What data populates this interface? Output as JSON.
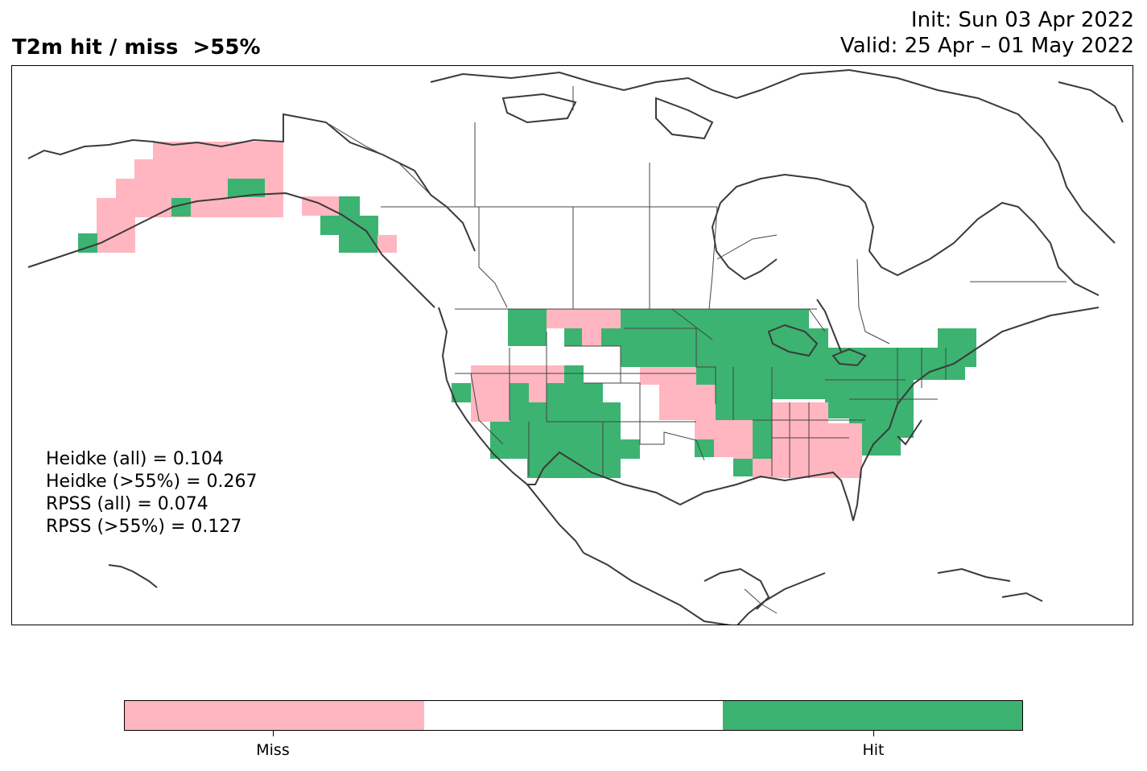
{
  "header": {
    "title": "T2m hit / miss  >55%",
    "init": "Init: Sun 03 Apr 2022",
    "valid": "Valid: 25 Apr – 01 May 2022"
  },
  "stats": [
    "Heidke (all) = 0.104",
    "Heidke (>55%) = 0.267",
    "RPSS (all) = 0.074",
    "RPSS (>55%) = 0.127"
  ],
  "legend": {
    "miss_label": "Miss",
    "hit_label": "Hit",
    "miss_color": "#ffb6c1",
    "neutral_color": "#ffffff",
    "hit_color": "#3cb371"
  },
  "map": {
    "region": "North America",
    "cell_categories": [
      "miss",
      "hit",
      "no-forecast"
    ]
  }
}
